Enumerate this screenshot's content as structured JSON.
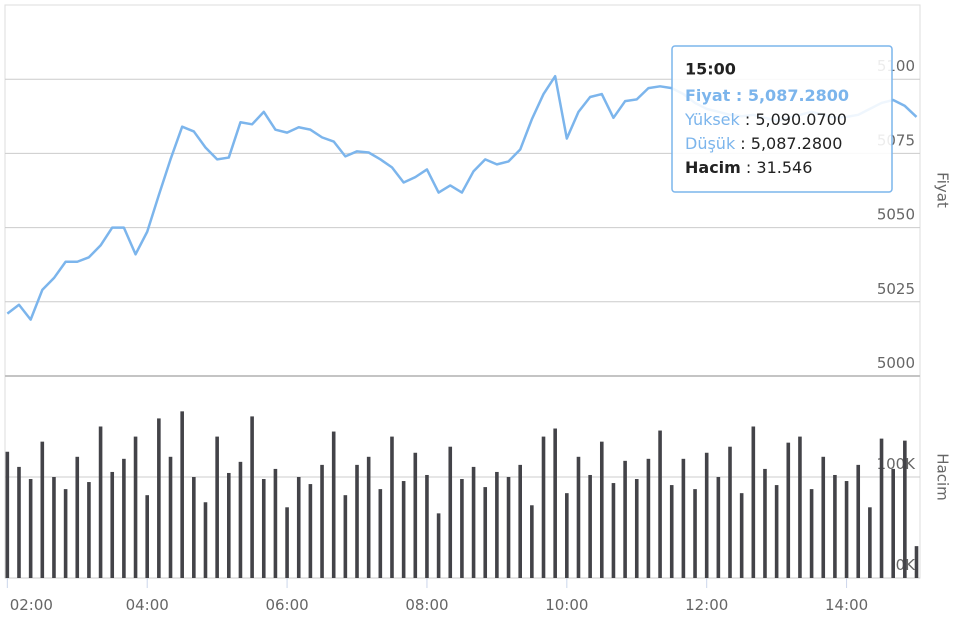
{
  "chart_data": [
    {
      "type": "line",
      "axis_title": "Fiyat",
      "color": "#7cb5ec",
      "grid": true,
      "xlim": [
        118,
        903
      ],
      "x": [
        120,
        130,
        140,
        150,
        160,
        170,
        180,
        190,
        200,
        210,
        220,
        230,
        240,
        250,
        260,
        270,
        280,
        290,
        300,
        310,
        320,
        330,
        340,
        350,
        360,
        370,
        380,
        390,
        400,
        410,
        420,
        430,
        440,
        450,
        460,
        470,
        480,
        490,
        500,
        510,
        520,
        530,
        540,
        550,
        560,
        570,
        580,
        590,
        600,
        610,
        620,
        630,
        640,
        650,
        660,
        670,
        680,
        690,
        700,
        710,
        720,
        730,
        740,
        750,
        760,
        770,
        780,
        790,
        800,
        810,
        820,
        830,
        840,
        850,
        860,
        870,
        880,
        890,
        900
      ],
      "values": [
        5021,
        5024,
        5019,
        5029,
        5033,
        5038.5,
        5038.5,
        5040,
        5044,
        5050,
        5050,
        5041,
        5048.6,
        5061,
        5073,
        5084,
        5082.4,
        5077,
        5073,
        5073.6,
        5085.5,
        5084.8,
        5089,
        5083,
        5082,
        5083.8,
        5083,
        5080.4,
        5079,
        5074,
        5075.7,
        5075.3,
        5073,
        5070.3,
        5065.2,
        5067,
        5069.6,
        5061.8,
        5064.2,
        5061.8,
        5069,
        5073,
        5071.3,
        5072.3,
        5076.3,
        5086.5,
        5095,
        5101,
        5080,
        5089,
        5094,
        5095,
        5087,
        5092.6,
        5093.2,
        5097,
        5097.6,
        5097,
        5095,
        5092,
        5090,
        5089,
        5088,
        5087.5,
        5088,
        5087,
        5086,
        5087,
        5088,
        5089,
        5088,
        5087,
        5087.3,
        5088,
        5090,
        5092,
        5093,
        5091,
        5087.28
      ],
      "ylim": [
        5000,
        5125
      ],
      "yticks": [
        5000,
        5025,
        5050,
        5075,
        5100
      ]
    },
    {
      "type": "bar",
      "axis_title": "Hacim",
      "color": "#434348",
      "grid": true,
      "xlim": [
        118,
        903
      ],
      "x": [
        120,
        130,
        140,
        150,
        160,
        170,
        180,
        190,
        200,
        210,
        220,
        230,
        240,
        250,
        260,
        270,
        280,
        290,
        300,
        310,
        320,
        330,
        340,
        350,
        360,
        370,
        380,
        390,
        400,
        410,
        420,
        430,
        440,
        450,
        460,
        470,
        480,
        490,
        500,
        510,
        520,
        530,
        540,
        550,
        560,
        570,
        580,
        590,
        600,
        610,
        620,
        630,
        640,
        650,
        660,
        670,
        680,
        690,
        700,
        710,
        720,
        730,
        740,
        750,
        760,
        770,
        780,
        790,
        800,
        810,
        820,
        830,
        840,
        850,
        860,
        870,
        880,
        890,
        900
      ],
      "values": [
        125000,
        110000,
        98000,
        135000,
        100000,
        88000,
        120000,
        95000,
        150000,
        105000,
        118000,
        140000,
        82000,
        158000,
        120000,
        165000,
        100000,
        75000,
        140000,
        104000,
        115000,
        160000,
        98000,
        108000,
        70000,
        100000,
        93000,
        112000,
        145000,
        82000,
        112000,
        120000,
        88000,
        140000,
        96000,
        124000,
        102000,
        64000,
        130000,
        98000,
        110000,
        90000,
        105000,
        100000,
        112000,
        72000,
        140000,
        148000,
        84000,
        120000,
        102000,
        135000,
        94000,
        116000,
        98000,
        118000,
        146000,
        92000,
        118000,
        88000,
        124000,
        100000,
        130000,
        84000,
        150000,
        108000,
        92000,
        134000,
        140000,
        88000,
        120000,
        102000,
        96000,
        112000,
        70000,
        138000,
        108000,
        136000,
        31546
      ],
      "ylim": [
        0,
        200000
      ],
      "yticks": [
        {
          "value": 0,
          "label": "0K"
        },
        {
          "value": 100000,
          "label": "100K"
        }
      ],
      "xticks": [
        {
          "value": 120,
          "label": "02:00"
        },
        {
          "value": 240,
          "label": "04:00"
        },
        {
          "value": 360,
          "label": "06:00"
        },
        {
          "value": 480,
          "label": "08:00"
        },
        {
          "value": 600,
          "label": "10:00"
        },
        {
          "value": 720,
          "label": "12:00"
        },
        {
          "value": 840,
          "label": "14:00"
        }
      ]
    }
  ],
  "tooltip": {
    "time": "15:00",
    "rows": [
      {
        "label": "Fiyat",
        "value": "5,087.2800"
      },
      {
        "label": "Yüksek",
        "value": "5,090.0700"
      },
      {
        "label": "Düşük",
        "value": "5,087.2800"
      },
      {
        "label": "Hacim",
        "value": "31.546"
      }
    ]
  }
}
